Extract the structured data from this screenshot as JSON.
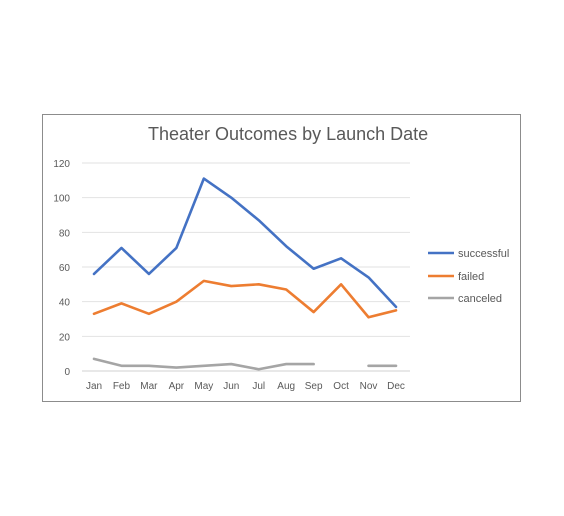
{
  "chart_data": {
    "type": "line",
    "title": "Theater Outcomes by Launch Date",
    "xlabel": "",
    "ylabel": "",
    "categories": [
      "Jan",
      "Feb",
      "Mar",
      "Apr",
      "May",
      "Jun",
      "Jul",
      "Aug",
      "Sep",
      "Oct",
      "Nov",
      "Dec"
    ],
    "ylim": [
      0,
      120
    ],
    "yticks": [
      0,
      20,
      40,
      60,
      80,
      100,
      120
    ],
    "grid": true,
    "legend_position": "right",
    "series": [
      {
        "name": "successful",
        "color": "#4472c4",
        "values": [
          56,
          71,
          56,
          71,
          111,
          100,
          87,
          72,
          59,
          65,
          54,
          37
        ]
      },
      {
        "name": "failed",
        "color": "#ed7d31",
        "values": [
          33,
          39,
          33,
          40,
          52,
          49,
          50,
          47,
          34,
          50,
          31,
          35
        ]
      },
      {
        "name": "canceled",
        "color": "#a5a5a5",
        "values": [
          7,
          3,
          3,
          2,
          3,
          4,
          1,
          4,
          4,
          null,
          3,
          3
        ]
      }
    ]
  }
}
